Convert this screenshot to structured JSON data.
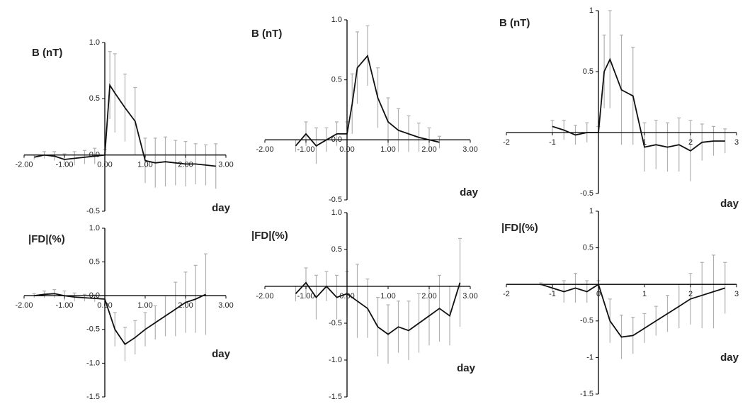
{
  "chart_data": [
    {
      "type": "line",
      "ylabel": "B (nT)",
      "xlabel": "day",
      "color": "#111111",
      "error_color": "#b0b0b0",
      "xlim": [
        -2,
        3
      ],
      "ylim": [
        -0.5,
        1
      ],
      "xticks": [
        {
          "value": -2,
          "label": "-2.00"
        },
        {
          "value": -1,
          "label": "-1.00"
        },
        {
          "value": 0,
          "label": "0.00"
        },
        {
          "value": 1,
          "label": "1.00"
        },
        {
          "value": 2,
          "label": "2.00"
        },
        {
          "value": 3,
          "label": "3.00"
        }
      ],
      "yticks": [
        {
          "value": -0.5,
          "label": "-0.5"
        },
        {
          "value": 0,
          "label": "0.0"
        },
        {
          "value": 0.5,
          "label": "0.5"
        },
        {
          "value": 1,
          "label": "1.0"
        }
      ],
      "x": [
        -1.75,
        -1.5,
        -1.25,
        -1,
        -0.75,
        -0.5,
        -0.25,
        0,
        0.125,
        0.25,
        0.5,
        0.75,
        1,
        1.25,
        1.5,
        1.75,
        2,
        2.25,
        2.5,
        2.75
      ],
      "values": [
        -0.02,
        0.0,
        -0.01,
        -0.04,
        -0.03,
        -0.02,
        -0.01,
        0.0,
        0.62,
        0.55,
        0.42,
        0.3,
        -0.05,
        -0.07,
        -0.06,
        -0.07,
        -0.08,
        -0.08,
        -0.09,
        -0.1
      ],
      "errors": [
        0.02,
        0.03,
        0.04,
        0.05,
        0.06,
        0.06,
        0.07,
        0.05,
        0.3,
        0.35,
        0.3,
        0.3,
        0.2,
        0.22,
        0.22,
        0.2,
        0.2,
        0.18,
        0.18,
        0.2
      ]
    },
    {
      "type": "line",
      "ylabel": "B (nT)",
      "xlabel": "day",
      "color": "#111111",
      "error_color": "#b0b0b0",
      "xlim": [
        -2,
        3
      ],
      "ylim": [
        -0.5,
        1
      ],
      "xticks": [
        {
          "value": -2,
          "label": "-2.00"
        },
        {
          "value": -1,
          "label": "-1.00"
        },
        {
          "value": 0,
          "label": "0.00"
        },
        {
          "value": 1,
          "label": "1.00"
        },
        {
          "value": 2,
          "label": "2.00"
        },
        {
          "value": 3,
          "label": "3.00"
        }
      ],
      "yticks": [
        {
          "value": -0.5,
          "label": "-0.5"
        },
        {
          "value": 0,
          "label": "0.0"
        },
        {
          "value": 0.5,
          "label": "0.5"
        },
        {
          "value": 1,
          "label": "1.0"
        }
      ],
      "x": [
        -1.25,
        -1,
        -0.75,
        -0.5,
        -0.25,
        0,
        0.125,
        0.25,
        0.5,
        0.75,
        1,
        1.25,
        1.5,
        1.75,
        2,
        2.25
      ],
      "values": [
        -0.05,
        0.05,
        -0.05,
        0.0,
        0.05,
        0.05,
        0.3,
        0.6,
        0.7,
        0.35,
        0.15,
        0.08,
        0.05,
        0.02,
        0.0,
        -0.02
      ],
      "errors": [
        0.05,
        0.1,
        0.15,
        0.1,
        0.1,
        0.1,
        0.25,
        0.3,
        0.25,
        0.25,
        0.2,
        0.18,
        0.15,
        0.12,
        0.1,
        0.05
      ]
    },
    {
      "type": "line",
      "ylabel": "B (nT)",
      "xlabel": "day",
      "color": "#111111",
      "error_color": "#b0b0b0",
      "xlim": [
        -2,
        3
      ],
      "ylim": [
        -0.5,
        1
      ],
      "xticks": [
        -2,
        -1,
        1,
        2,
        3
      ],
      "yticks": [
        -0.5,
        0.5,
        1
      ],
      "x": [
        -1,
        -0.75,
        -0.5,
        -0.25,
        0,
        0.125,
        0.25,
        0.5,
        0.75,
        1,
        1.25,
        1.5,
        1.75,
        2,
        2.25,
        2.5,
        2.75
      ],
      "values": [
        0.05,
        0.02,
        -0.02,
        0.0,
        0.0,
        0.5,
        0.6,
        0.35,
        0.3,
        -0.12,
        -0.1,
        -0.12,
        -0.1,
        -0.15,
        -0.08,
        -0.07,
        -0.07
      ],
      "errors": [
        0.05,
        0.08,
        0.08,
        0.08,
        0.05,
        0.3,
        0.4,
        0.45,
        0.4,
        0.2,
        0.2,
        0.2,
        0.22,
        0.25,
        0.15,
        0.12,
        0.1
      ]
    },
    {
      "type": "line",
      "ylabel": "|FD|(%)",
      "xlabel": "day",
      "color": "#111111",
      "error_color": "#b0b0b0",
      "xlim": [
        -2,
        3
      ],
      "ylim": [
        -1.5,
        1
      ],
      "xticks": [
        {
          "value": -2,
          "label": "-2.00"
        },
        {
          "value": -1,
          "label": "-1.00"
        },
        {
          "value": 0,
          "label": "0.00"
        },
        {
          "value": 1,
          "label": "1.00"
        },
        {
          "value": 2,
          "label": "2.00"
        },
        {
          "value": 3,
          "label": "3.00"
        }
      ],
      "yticks": [
        {
          "value": -1.5,
          "label": "-1.5"
        },
        {
          "value": -1,
          "label": "-1.0"
        },
        {
          "value": -0.5,
          "label": "-0.5"
        },
        {
          "value": 0,
          "label": "0.0"
        },
        {
          "value": 0.5,
          "label": "0.5"
        },
        {
          "value": 1,
          "label": "1.0"
        }
      ],
      "x": [
        -1.75,
        -1.5,
        -1.25,
        -1,
        -0.75,
        -0.5,
        -0.25,
        0,
        0.25,
        0.5,
        0.75,
        1,
        1.25,
        1.5,
        1.75,
        2,
        2.25,
        2.5
      ],
      "values": [
        0.0,
        0.02,
        0.03,
        0.0,
        -0.02,
        -0.03,
        -0.04,
        -0.05,
        -0.5,
        -0.72,
        -0.62,
        -0.5,
        -0.4,
        -0.3,
        -0.2,
        -0.1,
        -0.05,
        0.02
      ],
      "errors": [
        0.03,
        0.05,
        0.06,
        0.07,
        0.06,
        0.05,
        0.05,
        0.05,
        0.25,
        0.25,
        0.25,
        0.25,
        0.25,
        0.3,
        0.4,
        0.45,
        0.5,
        0.6
      ]
    },
    {
      "type": "line",
      "ylabel": "|FD|(%)",
      "xlabel": "day",
      "color": "#111111",
      "error_color": "#b0b0b0",
      "xlim": [
        -2,
        3
      ],
      "ylim": [
        -1.5,
        1
      ],
      "xticks": [
        {
          "value": -2,
          "label": "-2.00"
        },
        {
          "value": -1,
          "label": "-1.00"
        },
        {
          "value": 0,
          "label": "0.00"
        },
        {
          "value": 1,
          "label": "1.00"
        },
        {
          "value": 2,
          "label": "2.00"
        },
        {
          "value": 3,
          "label": "3.00"
        }
      ],
      "yticks": [
        {
          "value": -1.5,
          "label": "-1.5"
        },
        {
          "value": -1,
          "label": "-1.0"
        },
        {
          "value": -0.5,
          "label": "-0.5"
        },
        {
          "value": 0.5,
          "label": "0.5"
        },
        {
          "value": 1,
          "label": "1.0"
        }
      ],
      "x": [
        -1.25,
        -1,
        -0.75,
        -0.5,
        -0.25,
        0,
        0.25,
        0.5,
        0.75,
        1,
        1.25,
        1.5,
        1.75,
        2,
        2.25,
        2.5,
        2.75
      ],
      "values": [
        -0.1,
        0.05,
        -0.15,
        0.0,
        -0.15,
        -0.1,
        -0.2,
        -0.3,
        -0.55,
        -0.65,
        -0.55,
        -0.6,
        -0.5,
        -0.4,
        -0.3,
        -0.4,
        0.05
      ],
      "errors": [
        0.1,
        0.2,
        0.3,
        0.2,
        0.3,
        0.3,
        0.5,
        0.4,
        0.4,
        0.4,
        0.35,
        0.4,
        0.4,
        0.4,
        0.45,
        0.4,
        0.6
      ]
    },
    {
      "type": "line",
      "ylabel": "|FD|(%)",
      "xlabel": "day",
      "color": "#111111",
      "error_color": "#b0b0b0",
      "xlim": [
        -2,
        3
      ],
      "ylim": [
        -1.5,
        1
      ],
      "xticks": [
        -2,
        -1,
        0,
        1,
        2,
        3
      ],
      "yticks": [
        -1.5,
        -1,
        -0.5,
        0.5,
        1
      ],
      "x": [
        -1.25,
        -1,
        -0.75,
        -0.5,
        -0.25,
        0,
        0.25,
        0.5,
        0.75,
        1,
        1.25,
        1.5,
        1.75,
        2,
        2.25,
        2.5,
        2.75
      ],
      "values": [
        0.0,
        -0.05,
        -0.1,
        -0.05,
        -0.1,
        0.0,
        -0.5,
        -0.72,
        -0.7,
        -0.6,
        -0.5,
        -0.4,
        -0.3,
        -0.2,
        -0.15,
        -0.1,
        -0.05
      ],
      "errors": [
        0.02,
        0.05,
        0.15,
        0.2,
        0.15,
        0.05,
        0.3,
        0.3,
        0.25,
        0.2,
        0.2,
        0.25,
        0.3,
        0.35,
        0.45,
        0.5,
        0.35
      ]
    }
  ]
}
